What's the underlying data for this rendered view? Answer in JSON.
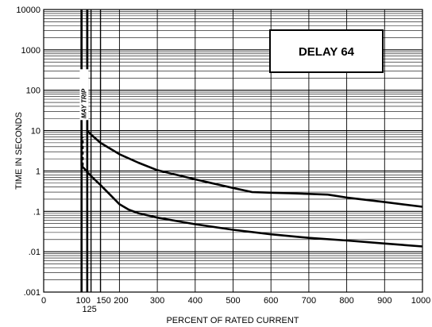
{
  "chart_data": {
    "type": "line",
    "xlabel": "PERCENT OF RATED CURRENT",
    "ylabel": "TIME IN SECONDS",
    "xlim": [
      0,
      1000
    ],
    "ylim": [
      0.001,
      10000
    ],
    "yscale": "log",
    "x_ticks": [
      {
        "value": 0,
        "label": "0"
      },
      {
        "value": 100,
        "label": "100"
      },
      {
        "value": 150,
        "label": "150"
      },
      {
        "value": 200,
        "label": "200"
      },
      {
        "value": 300,
        "label": "300"
      },
      {
        "value": 400,
        "label": "400"
      },
      {
        "value": 500,
        "label": "500"
      },
      {
        "value": 600,
        "label": "600"
      },
      {
        "value": 700,
        "label": "700"
      },
      {
        "value": 800,
        "label": "800"
      },
      {
        "value": 900,
        "label": "900"
      },
      {
        "value": 1000,
        "label": "1000"
      }
    ],
    "x_tick_extra": {
      "value": 125,
      "label": "125"
    },
    "y_ticks": [
      {
        "value": 0.001,
        "label": ".001"
      },
      {
        "value": 0.01,
        "label": ".01"
      },
      {
        "value": 0.1,
        "label": ".1"
      },
      {
        "value": 1,
        "label": "1"
      },
      {
        "value": 10,
        "label": "10"
      },
      {
        "value": 100,
        "label": "100"
      },
      {
        "value": 1000,
        "label": "1000"
      },
      {
        "value": 10000,
        "label": "10000"
      }
    ],
    "vertical_lines": [
      100,
      115,
      125,
      150
    ],
    "legend_label": "DELAY 64",
    "legend_position": "top-right",
    "annotations": [
      {
        "text": "MAY TRIP",
        "x": 112,
        "y": 20,
        "rotation": -90
      }
    ],
    "series": [
      {
        "x": [
          115,
          125,
          150,
          200,
          250,
          300,
          400,
          500,
          550,
          600,
          650,
          700,
          750,
          800,
          900,
          1000
        ],
        "y": [
          10,
          8,
          5,
          2.6,
          1.6,
          1.05,
          0.62,
          0.38,
          0.3,
          0.29,
          0.28,
          0.27,
          0.26,
          0.22,
          0.17,
          0.13
        ]
      },
      {
        "x": [
          100,
          125,
          150,
          175,
          200,
          225,
          250,
          300,
          400,
          500,
          600,
          700,
          800,
          900,
          1000
        ],
        "y": [
          1.35,
          0.75,
          0.45,
          0.26,
          0.15,
          0.11,
          0.09,
          0.07,
          0.048,
          0.035,
          0.027,
          0.022,
          0.019,
          0.016,
          0.0135
        ]
      }
    ],
    "dashed_segment": {
      "x": [
        115,
        115
      ],
      "y": [
        1.35,
        10
      ]
    },
    "grid": "on",
    "colors": {
      "line": "#000000",
      "grid": "#000000",
      "background": "#ffffff"
    }
  }
}
